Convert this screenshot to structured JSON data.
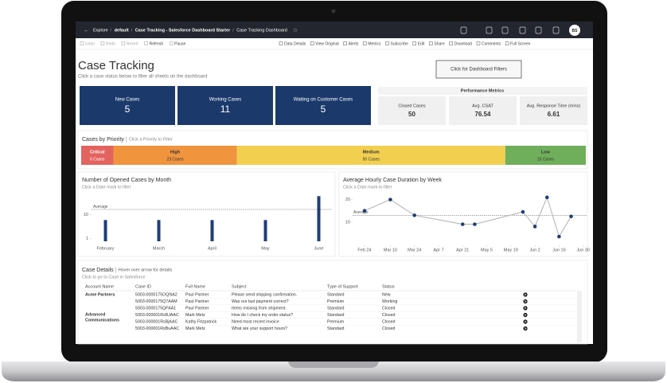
{
  "breadcrumb": [
    "Explore",
    "default",
    "Case Tracking - Salesforce Dashboard Starter",
    "Case Tracking Dashboard"
  ],
  "avatar": "BS",
  "toolbar_left": [
    "Undo",
    "Redo",
    "Revert",
    "Refresh",
    "Pause"
  ],
  "toolbar_right": [
    "Data Details",
    "View Original",
    "Alerts",
    "Metrics",
    "Subscribe",
    "Edit",
    "Share",
    "Download",
    "Comments",
    "Full Screen"
  ],
  "title": "Case Tracking",
  "subtitle": "Click a case status below to filter all sheets on the dashboard",
  "filter_button": "Click for Dashboard Filters",
  "status_cards": [
    {
      "label": "New Cases",
      "value": 5
    },
    {
      "label": "Working Cases",
      "value": 11
    },
    {
      "label": "Waiting on Customer Cases",
      "value": 5
    }
  ],
  "performance": {
    "title": "Performance Metrics",
    "metrics": [
      {
        "label": "Closed Cases",
        "value": 50
      },
      {
        "label": "Avg. CSAT",
        "value": 76.54
      },
      {
        "label": "Avg. Response Time (mins)",
        "value": 6.61
      }
    ]
  },
  "priority": {
    "title": "Cases by Priority",
    "hint": "Click a Priority to Filter",
    "segments": [
      {
        "name": "Critical",
        "value": 6,
        "value_label": "6 Cases",
        "color": "#e3635f"
      },
      {
        "name": "High",
        "value": 23,
        "value_label": "23 Cases",
        "color": "#f0943e"
      },
      {
        "name": "Medium",
        "value": 50,
        "value_label": "50 Cases",
        "color": "#f2cf4f"
      },
      {
        "name": "Low",
        "value": 15,
        "value_label": "15 Cases",
        "color": "#6fae5b"
      }
    ]
  },
  "chart_data": [
    {
      "type": "bar",
      "title": "Number of Opened Cases by Month",
      "subtitle": "Click a Date mark to filter",
      "categories": [
        "February",
        "March",
        "April",
        "May",
        "June"
      ],
      "values": [
        8,
        8,
        8,
        8,
        17
      ],
      "color": "#1f3d7a",
      "ylim": [
        0,
        18
      ],
      "yticks": [
        1,
        10
      ],
      "average": 12,
      "average_label": "Average"
    },
    {
      "type": "line",
      "title": "Average Hourly Case Duration by Week",
      "subtitle": "Click a Date mark to filter",
      "x": [
        "Feb 24",
        "Mar 10",
        "Mar 24",
        "Apr 21",
        "Apr 28",
        "May 26",
        "Jun 2",
        "Jun 9",
        "Jun 16",
        "Jun 23"
      ],
      "values": [
        15,
        20,
        13,
        9,
        9,
        14.5,
        8,
        21,
        3.5,
        12.5
      ],
      "color": "#bdbdbd",
      "marker_color": "#1f3d7a",
      "xlim": [
        "Feb 18",
        "Jul 2"
      ],
      "xticks": [
        "Feb 24",
        "Mar 10",
        "Mar 24",
        "Apr 7",
        "Apr 21",
        "May 5",
        "May 19",
        "Jun 2",
        "Jun 16",
        "Jun 30"
      ],
      "ylim": [
        0,
        22
      ],
      "yticks": [
        10,
        20
      ],
      "average": 13,
      "average_label": "Average"
    }
  ],
  "table": {
    "title": "Case Details",
    "hint": "Hover over arrow for details",
    "subtitle": "Click to go to Case in Salesforce",
    "columns": [
      "Account Name",
      "Case ID",
      "Full Name",
      "Subject",
      "Type of Support",
      "Status"
    ],
    "rows": [
      [
        "Acme Partners",
        "5003-0000175OQNA2",
        "Paul Partner",
        "Please send shipping confirmation.",
        "Standard",
        "New"
      ],
      [
        null,
        "5003-0000175Q7AAM",
        "Paul Partner",
        "Was our last payment correct?",
        "Premium",
        "Working"
      ],
      [
        null,
        "5003-0000175QFAA1",
        "Paul Partner",
        "Items missing from shipment.",
        "Standard",
        "Closed"
      ],
      [
        "Advanced Communications",
        "5003-000001RsBJAAC",
        "Mark Metz",
        "How do I check my order status?",
        "Standard",
        "Closed"
      ],
      [
        null,
        "5003-000001RsBjAAC",
        "Kathy Fitzpatrick",
        "Need most recent invoice",
        "Premium",
        "Closed"
      ],
      [
        null,
        "5003-000001RsBuAAC",
        "Mark Metz",
        "What are your support hours?",
        "Standard",
        "Closed"
      ]
    ]
  }
}
